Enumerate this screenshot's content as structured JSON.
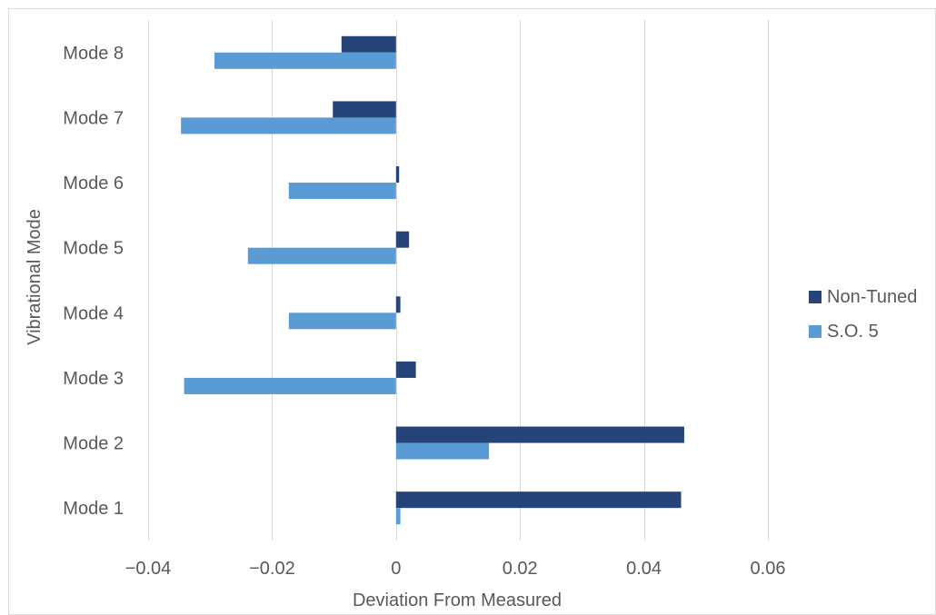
{
  "chart_data": {
    "type": "bar",
    "orientation": "horizontal",
    "categories": [
      "Mode 1",
      "Mode 2",
      "Mode 3",
      "Mode 4",
      "Mode 5",
      "Mode 6",
      "Mode 7",
      "Mode 8"
    ],
    "series": [
      {
        "name": "Non-Tuned",
        "color": "#264478",
        "values": [
          0.046,
          0.0465,
          0.0032,
          0.0007,
          0.0021,
          0.0005,
          -0.0102,
          -0.0088
        ]
      },
      {
        "name": "S.O. 5",
        "color": "#5b9bd5",
        "values": [
          0.0007,
          0.015,
          -0.0342,
          -0.0173,
          -0.0239,
          -0.0173,
          -0.0347,
          -0.0293
        ]
      }
    ],
    "title": "",
    "xlabel": "Deviation From Measured",
    "ylabel": "Vibrational Mode",
    "xlim": [
      -0.04,
      0.06
    ],
    "xticks": [
      -0.04,
      -0.02,
      0,
      0.02,
      0.04,
      0.06
    ],
    "xtick_labels": [
      "−0.04",
      "−0.02",
      "0",
      "0.02",
      "0.04",
      "0.06"
    ],
    "grid": "vertical",
    "legend_position": "right"
  }
}
